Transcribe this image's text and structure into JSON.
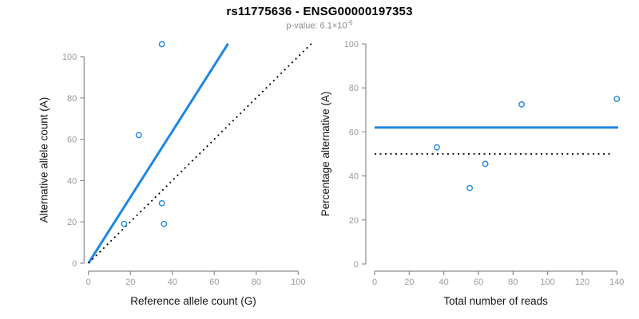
{
  "header": {
    "title": "rs11775636 - ENSG00000197353",
    "pvalue_label": "p-value: 6.1×10",
    "pvalue_exponent": "-6"
  },
  "colors": {
    "accent_blue": "#1E87E4",
    "axis_gray": "#8E8E8E",
    "tick_label_gray": "#9A9A9A",
    "label_black": "#141414",
    "dotted_black": "#000000"
  },
  "chart_data": [
    {
      "type": "scatter",
      "panel": "left",
      "xlabel": "Reference allele count (G)",
      "ylabel": "Alternative allele count (A)",
      "xlim": [
        0,
        100
      ],
      "ylim": [
        0,
        100
      ],
      "xticks": [
        0,
        20,
        40,
        60,
        80,
        100
      ],
      "yticks": [
        0,
        20,
        40,
        60,
        80,
        100
      ],
      "grid": false,
      "legend": null,
      "points": [
        [
          35,
          106
        ],
        [
          24,
          62
        ],
        [
          35,
          29
        ],
        [
          17,
          19
        ],
        [
          36,
          19
        ]
      ],
      "lines": [
        {
          "role": "fit",
          "style": "solid",
          "color": "accent_blue",
          "x": [
            0,
            66.6
          ],
          "y": [
            0,
            106.3
          ]
        },
        {
          "role": "identity",
          "style": "dotted",
          "color": "dotted_black",
          "x": [
            0,
            106.5
          ],
          "y": [
            0,
            106.5
          ]
        }
      ]
    },
    {
      "type": "scatter",
      "panel": "right",
      "xlabel": "Total number of reads",
      "ylabel": "Percentage alternative (A)",
      "xlim": [
        0,
        140
      ],
      "ylim": [
        0,
        100
      ],
      "xticks": [
        0,
        20,
        40,
        60,
        80,
        100,
        120,
        140
      ],
      "yticks": [
        0,
        20,
        40,
        60,
        80,
        100
      ],
      "grid": false,
      "legend": null,
      "points": [
        [
          36,
          53
        ],
        [
          55,
          34.5
        ],
        [
          64,
          45.5
        ],
        [
          85,
          72.5
        ],
        [
          140,
          75
        ]
      ],
      "lines": [
        {
          "role": "mean-percentage",
          "style": "solid",
          "color": "accent_blue",
          "x": [
            0,
            140.8
          ],
          "y": [
            62,
            62
          ]
        },
        {
          "role": "expected-50",
          "style": "dotted",
          "color": "dotted_black",
          "x": [
            0,
            138
          ],
          "y": [
            50,
            50
          ]
        }
      ]
    }
  ]
}
